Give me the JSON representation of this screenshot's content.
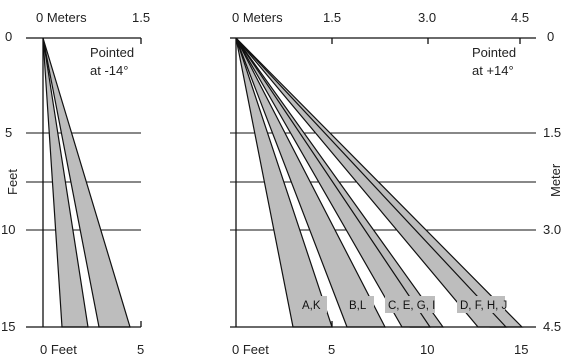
{
  "left_panel": {
    "top_axis": {
      "labels": [
        "0 Meters",
        "1.5"
      ]
    },
    "bottom_axis": {
      "labels": [
        "0 Feet",
        "5"
      ]
    },
    "left_axis": {
      "title": "Feet",
      "labels": [
        "0",
        "5",
        "10",
        "15"
      ]
    },
    "note_line1": "Pointed",
    "note_line2": "at -14°"
  },
  "right_panel": {
    "top_axis": {
      "labels": [
        "0 Meters",
        "1.5",
        "3.0",
        "4.5"
      ]
    },
    "bottom_axis": {
      "labels": [
        "0 Feet",
        "5",
        "10",
        "15"
      ]
    },
    "right_axis": {
      "title": "Meter",
      "labels": [
        "0",
        "1.5",
        "3.0",
        "4.5"
      ]
    },
    "note_line1": "Pointed",
    "note_line2": "at +14°",
    "beam_tags": [
      "A,K",
      "B,L",
      "C, E, G, I",
      "D, F, H, J"
    ]
  }
}
